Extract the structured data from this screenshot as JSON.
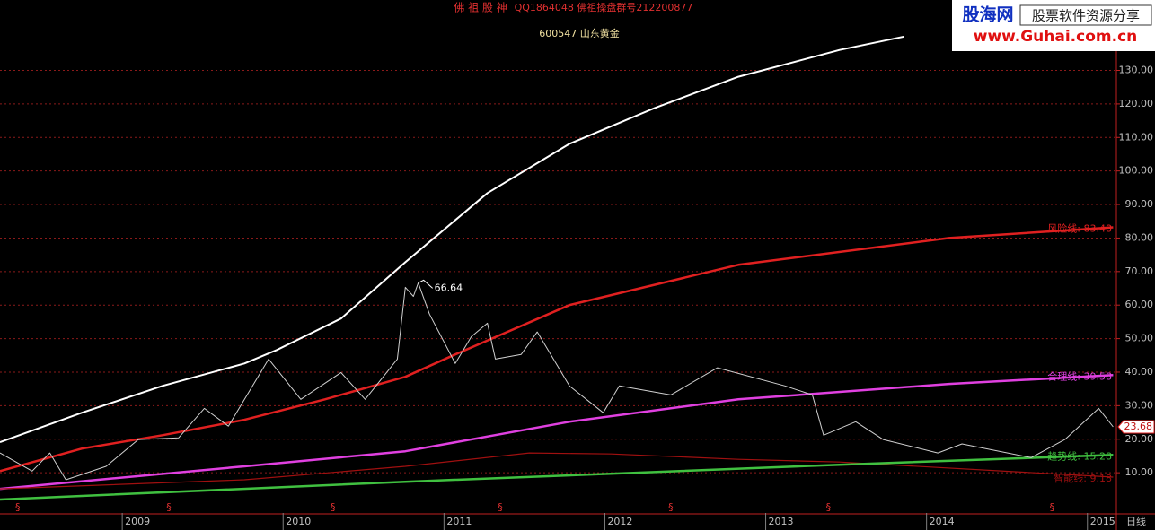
{
  "chart_data": {
    "type": "line",
    "header": {
      "left": "佛 祖 股 神",
      "right": "QQ1864048 佛祖操盘群号212200877"
    },
    "title": "600547 山东黄金",
    "period_label": "日线",
    "logo": {
      "name": "股海网",
      "slogan": "股票软件资源分享",
      "url": "www.Guhai.com.cn"
    },
    "xlim": [
      2008.24,
      2015.18
    ],
    "xticks": [
      2009,
      2010,
      2011,
      2012,
      2013,
      2014,
      2015
    ],
    "ylim": [
      -2,
      151
    ],
    "yticks": [
      {
        "value": 10,
        "label": "10.00"
      },
      {
        "value": 20,
        "label": "20.00"
      },
      {
        "value": 30,
        "label": "30.00"
      },
      {
        "value": 40,
        "label": "40.00"
      },
      {
        "value": 50,
        "label": "50.00"
      },
      {
        "value": 60,
        "label": "60.00"
      },
      {
        "value": 70,
        "label": "70.00"
      },
      {
        "value": 80,
        "label": "80.00"
      },
      {
        "value": 90,
        "label": "90.00"
      },
      {
        "value": 100,
        "label": "100.00"
      },
      {
        "value": 110,
        "label": "110.00"
      },
      {
        "value": 120,
        "label": "120.00"
      },
      {
        "value": 130,
        "label": "130.00"
      }
    ],
    "grid": true,
    "series": [
      {
        "color": "#ffffff",
        "width": 2,
        "x": [
          2008.24,
          2008.75,
          2009.25,
          2009.76,
          2009.96,
          2010.36,
          2010.76,
          2011.27,
          2011.78,
          2012.31,
          2012.83,
          2013.46,
          2013.86
        ],
        "values": [
          19.1,
          27.9,
          35.9,
          42.6,
          46.6,
          56.0,
          72.8,
          93.4,
          108.1,
          118.8,
          128.1,
          136.1,
          140.1
        ]
      },
      {
        "color": "#e02020",
        "width": 2.5,
        "label": "风险线: 83.48",
        "x": [
          2008.24,
          2008.75,
          2009.25,
          2009.76,
          2010.26,
          2010.76,
          2011.07,
          2011.78,
          2012.83,
          2014.14,
          2015.16
        ],
        "values": [
          10.5,
          17.2,
          21.2,
          25.8,
          31.9,
          38.6,
          45.3,
          60.0,
          72.0,
          80.0,
          83.2
        ]
      },
      {
        "color": "#e040e0",
        "width": 2.5,
        "label": "合理线: 39.58",
        "x": [
          2008.24,
          2009.76,
          2010.76,
          2011.78,
          2012.83,
          2014.14,
          2015.16
        ],
        "values": [
          5.2,
          11.9,
          16.4,
          25.2,
          31.9,
          36.5,
          39.1
        ]
      },
      {
        "color": "#a01010",
        "width": 1.2,
        "label": "智能线: 9.18",
        "x": [
          2008.24,
          2009.76,
          2010.76,
          2011.53,
          2012.04,
          2012.83,
          2013.46,
          2015.16
        ],
        "values": [
          5.2,
          7.9,
          11.9,
          15.9,
          15.6,
          14.0,
          13.2,
          8.7
        ]
      },
      {
        "color": "#40c040",
        "width": 2.5,
        "label": "趋势线: 15.28",
        "x": [
          2008.24,
          2010.76,
          2013.46,
          2015.16
        ],
        "values": [
          2.0,
          7.3,
          12.4,
          15.3
        ]
      },
      {
        "color": "#d0d0d0",
        "width": 1,
        "x": [
          2008.24,
          2008.44,
          2008.55,
          2008.65,
          2008.9,
          2009.1,
          2009.35,
          2009.51,
          2009.66,
          2009.91,
          2010.11,
          2010.36,
          2010.51,
          2010.71,
          2010.76,
          2010.81,
          2010.84,
          2010.91,
          2011.07,
          2011.17,
          2011.27,
          2011.32,
          2011.48,
          2011.58,
          2011.78,
          2011.99,
          2012.09,
          2012.41,
          2012.7,
          2013.12,
          2013.29,
          2013.36,
          2013.56,
          2013.73,
          2014.07,
          2014.22,
          2014.65,
          2014.86,
          2015.07,
          2015.16
        ],
        "values": [
          15.9,
          10.5,
          15.9,
          7.9,
          11.9,
          19.9,
          20.4,
          29.2,
          23.9,
          43.9,
          31.9,
          39.9,
          31.9,
          43.9,
          65.3,
          62.6,
          66.64,
          57.3,
          42.6,
          50.6,
          54.6,
          43.9,
          45.3,
          52.0,
          35.9,
          27.9,
          35.9,
          33.2,
          41.3,
          35.9,
          33.2,
          21.2,
          25.2,
          19.9,
          15.9,
          18.6,
          14.5,
          19.9,
          29.2,
          23.68
        ]
      }
    ],
    "annotations": [
      {
        "label": "66.64",
        "x": 2010.84,
        "y": 66.64
      },
      {
        "label": "23.68",
        "x": 2015.16,
        "y": 23.68
      }
    ],
    "event_markers": {
      "label": "§",
      "x": [
        2008.35,
        2009.29,
        2010.31,
        2011.35,
        2012.41,
        2013.39,
        2014.78
      ]
    }
  }
}
